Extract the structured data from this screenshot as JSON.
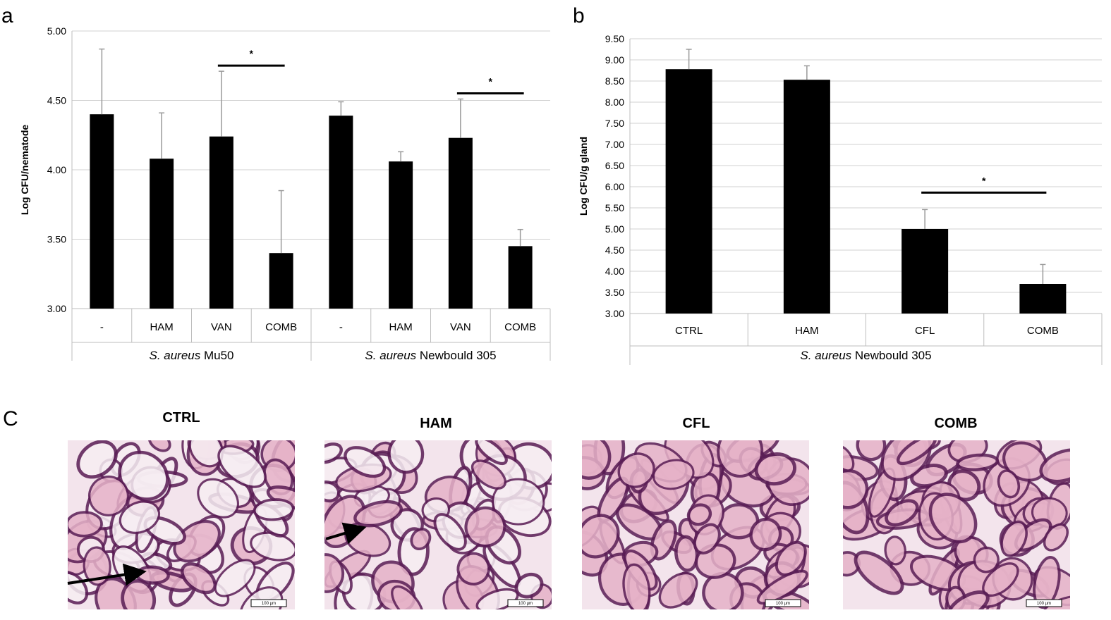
{
  "panels": {
    "a": "a",
    "b": "b",
    "c": "C"
  },
  "colors": {
    "bar": "#000000",
    "errorbar": "#9a9a9a",
    "grid": "#d0d0d0",
    "tissue_bg": "#f3e4ec",
    "tissue_stroke": "#5a1d55",
    "tissue_fill": "#e6b2c8"
  },
  "chart_data": [
    {
      "type": "bar",
      "ylabel": "Log CFU/nematode",
      "ylim": [
        3.0,
        5.0
      ],
      "yticks": [
        "3.00",
        "3.50",
        "4.00",
        "4.50",
        "5.00"
      ],
      "grid": true,
      "groups": [
        {
          "prefix": "S. aureus",
          "name": "Mu50"
        },
        {
          "prefix": "S. aureus",
          "name": "Newbould 305"
        }
      ],
      "categories": [
        "-",
        "HAM",
        "VAN",
        "COMB",
        "-",
        "HAM",
        "VAN",
        "COMB"
      ],
      "values": [
        4.4,
        4.08,
        4.24,
        3.4,
        4.39,
        4.06,
        4.23,
        3.45
      ],
      "errors": [
        0.47,
        0.33,
        0.47,
        0.45,
        0.1,
        0.07,
        0.28,
        0.12
      ],
      "significance": [
        {
          "from": 2,
          "to": 3,
          "label": "*"
        },
        {
          "from": 6,
          "to": 7,
          "label": "*"
        }
      ]
    },
    {
      "type": "bar",
      "ylabel": "Log CFU/g gland",
      "ylim": [
        3.0,
        9.5
      ],
      "yticks": [
        "3.00",
        "3.50",
        "4.00",
        "4.50",
        "5.00",
        "5.50",
        "6.00",
        "6.50",
        "7.00",
        "7.50",
        "8.00",
        "8.50",
        "9.00",
        "9.50"
      ],
      "grid": true,
      "groups": [
        {
          "prefix": "S. aureus",
          "name": "Newbould 305"
        }
      ],
      "categories": [
        "CTRL",
        "HAM",
        "CFL",
        "COMB"
      ],
      "values": [
        8.78,
        8.53,
        5.0,
        3.7
      ],
      "errors": [
        0.47,
        0.33,
        0.46,
        0.46
      ],
      "significance": [
        {
          "from": 2,
          "to": 3,
          "label": "*"
        }
      ]
    }
  ],
  "histology": {
    "titles": [
      "CTRL",
      "HAM",
      "CFL",
      "COMB"
    ],
    "scale_label": "100 µm"
  }
}
